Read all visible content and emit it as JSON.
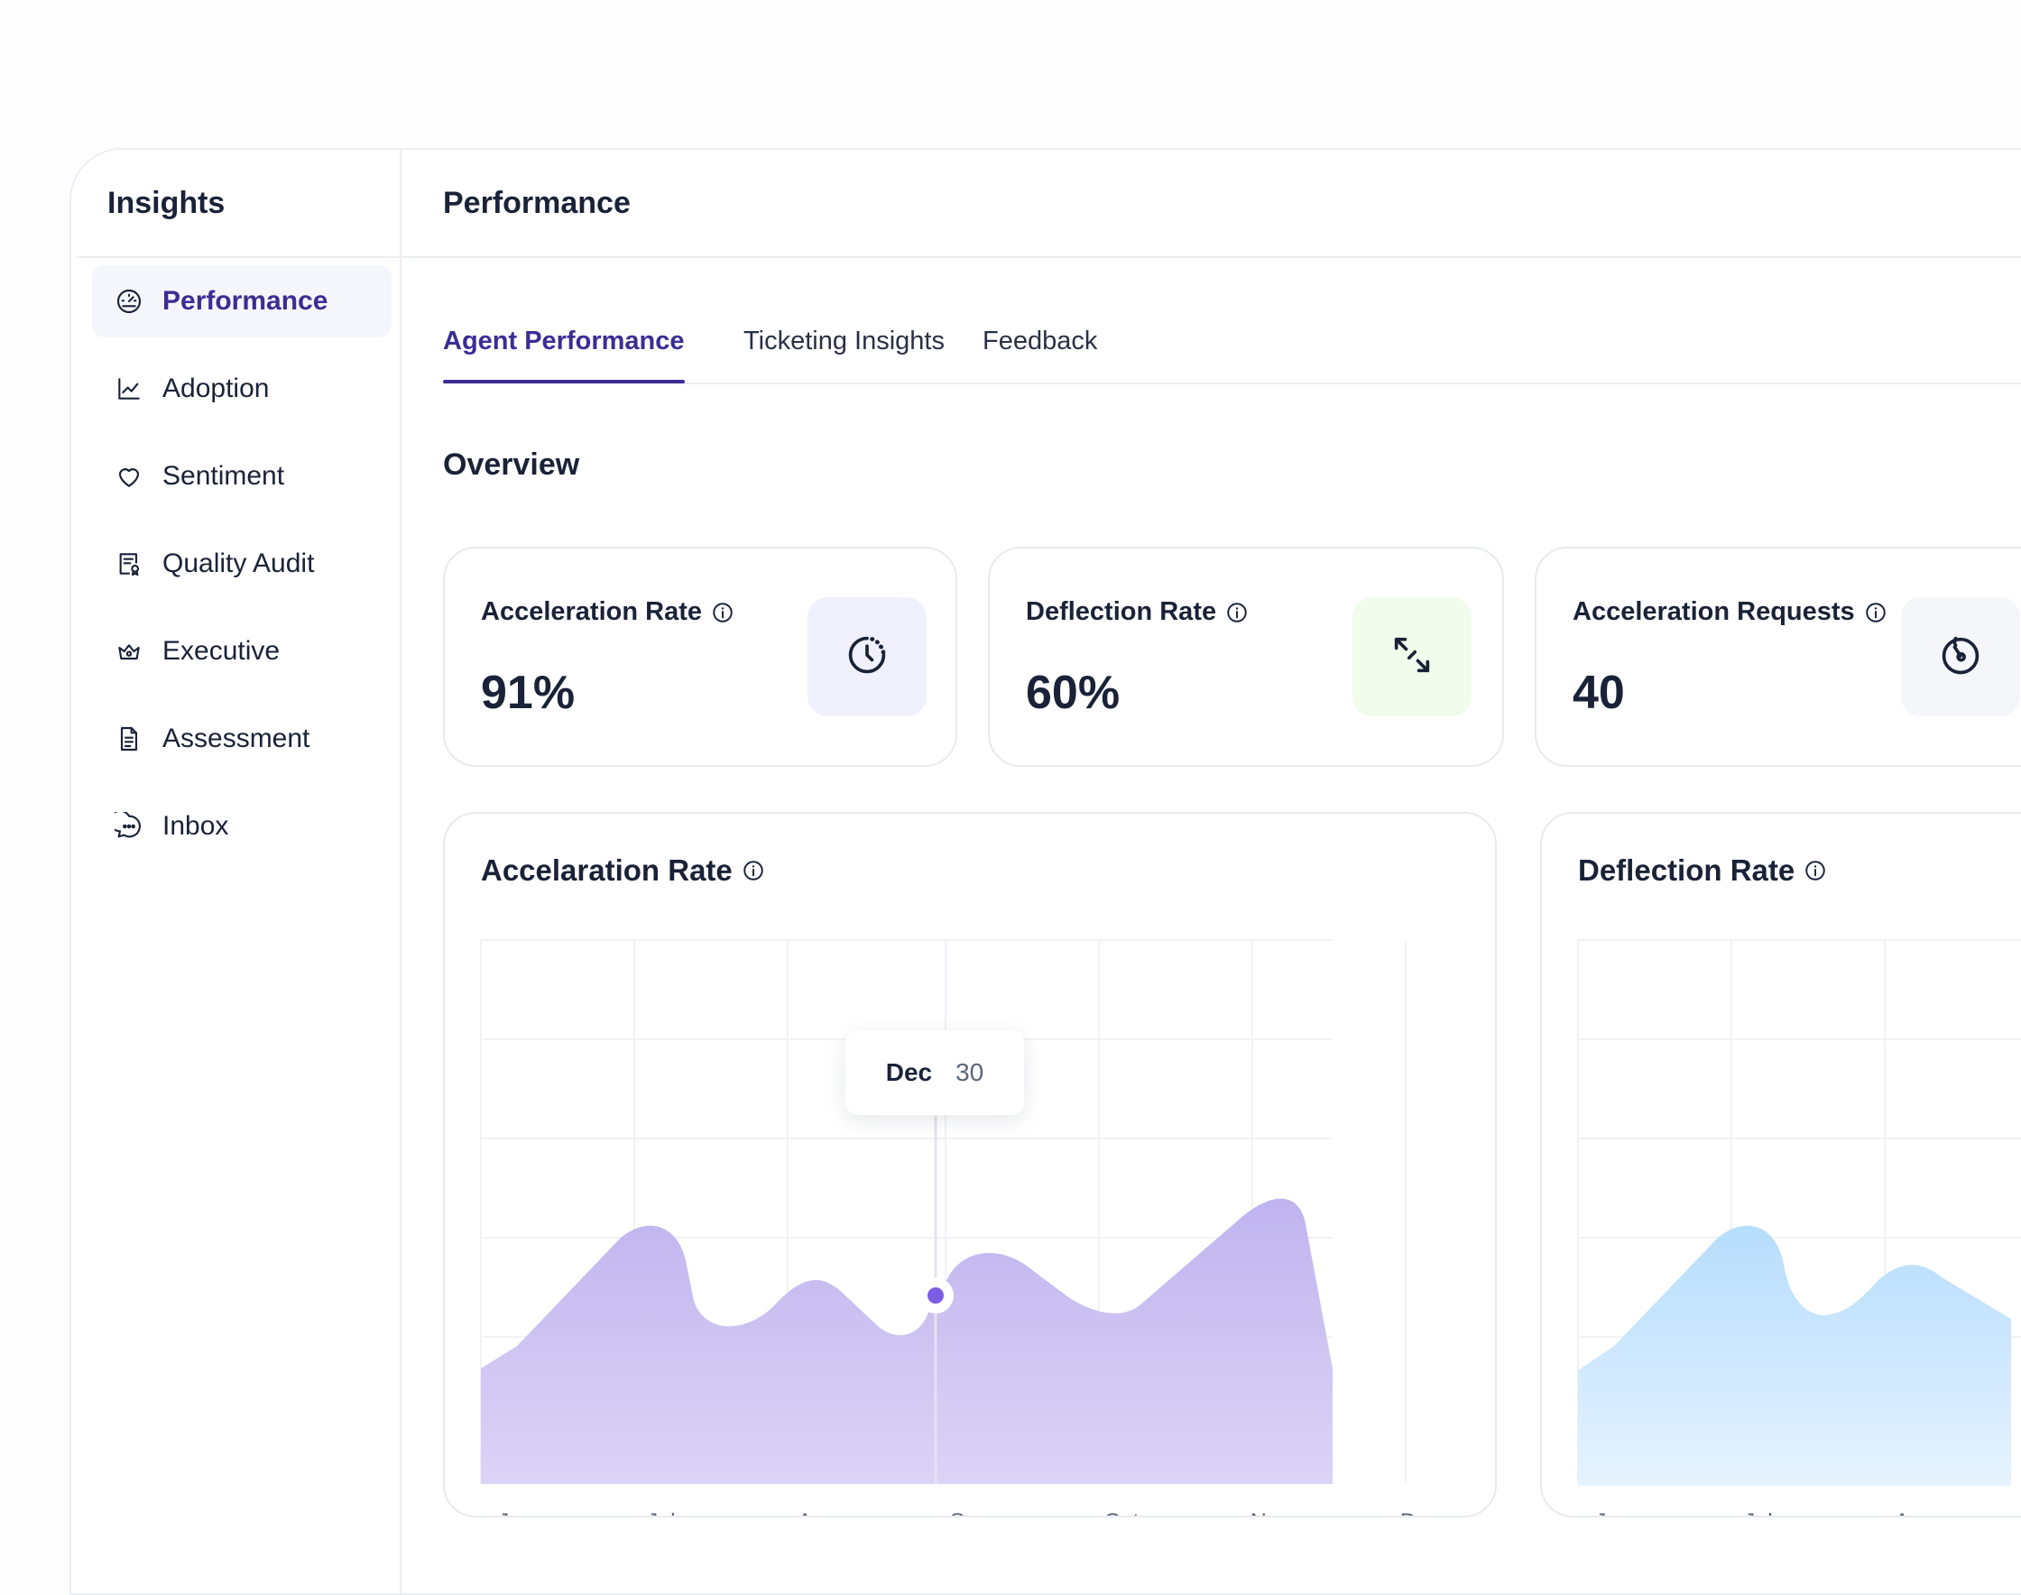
{
  "sidebar": {
    "title": "Insights",
    "items": [
      {
        "label": "Performance",
        "icon": "gauge-icon",
        "active": true
      },
      {
        "label": "Adoption",
        "icon": "line-chart-icon"
      },
      {
        "label": "Sentiment",
        "icon": "heart-icon"
      },
      {
        "label": "Quality Audit",
        "icon": "certificate-icon"
      },
      {
        "label": "Executive",
        "icon": "crown-icon"
      },
      {
        "label": "Assessment",
        "icon": "document-icon"
      },
      {
        "label": "Inbox",
        "icon": "chat-bubble-icon"
      }
    ]
  },
  "main": {
    "title": "Performance",
    "tabs": [
      {
        "label": "Agent Performance",
        "active": true
      },
      {
        "label": "Ticketing Insights"
      },
      {
        "label": "Feedback"
      }
    ],
    "section_title": "Overview",
    "kpis": [
      {
        "label": "Acceleration Rate",
        "value": "91%",
        "icon": "clock-dashed-icon",
        "icon_bg": "#f0f1fc"
      },
      {
        "label": "Deflection Rate",
        "value": "60%",
        "icon": "diagonal-arrows-icon",
        "icon_bg": "#f2fcec"
      },
      {
        "label": "Acceleration Requests",
        "value": "40",
        "icon": "stopwatch-icon",
        "icon_bg": "#f5f6fa"
      }
    ]
  },
  "chart_data": [
    {
      "type": "area",
      "title": "Accelaration Rate",
      "x": [
        "Jun",
        "July",
        "Aug",
        "Sep",
        "Oct",
        "Nov",
        "Dec"
      ],
      "color": "#b9aef0",
      "tooltip": {
        "label": "Dec",
        "value": "30"
      }
    },
    {
      "type": "area",
      "title": "Deflection Rate",
      "x": [
        "Jun",
        "July",
        "Aug"
      ],
      "color": "#b6ddfd"
    }
  ]
}
